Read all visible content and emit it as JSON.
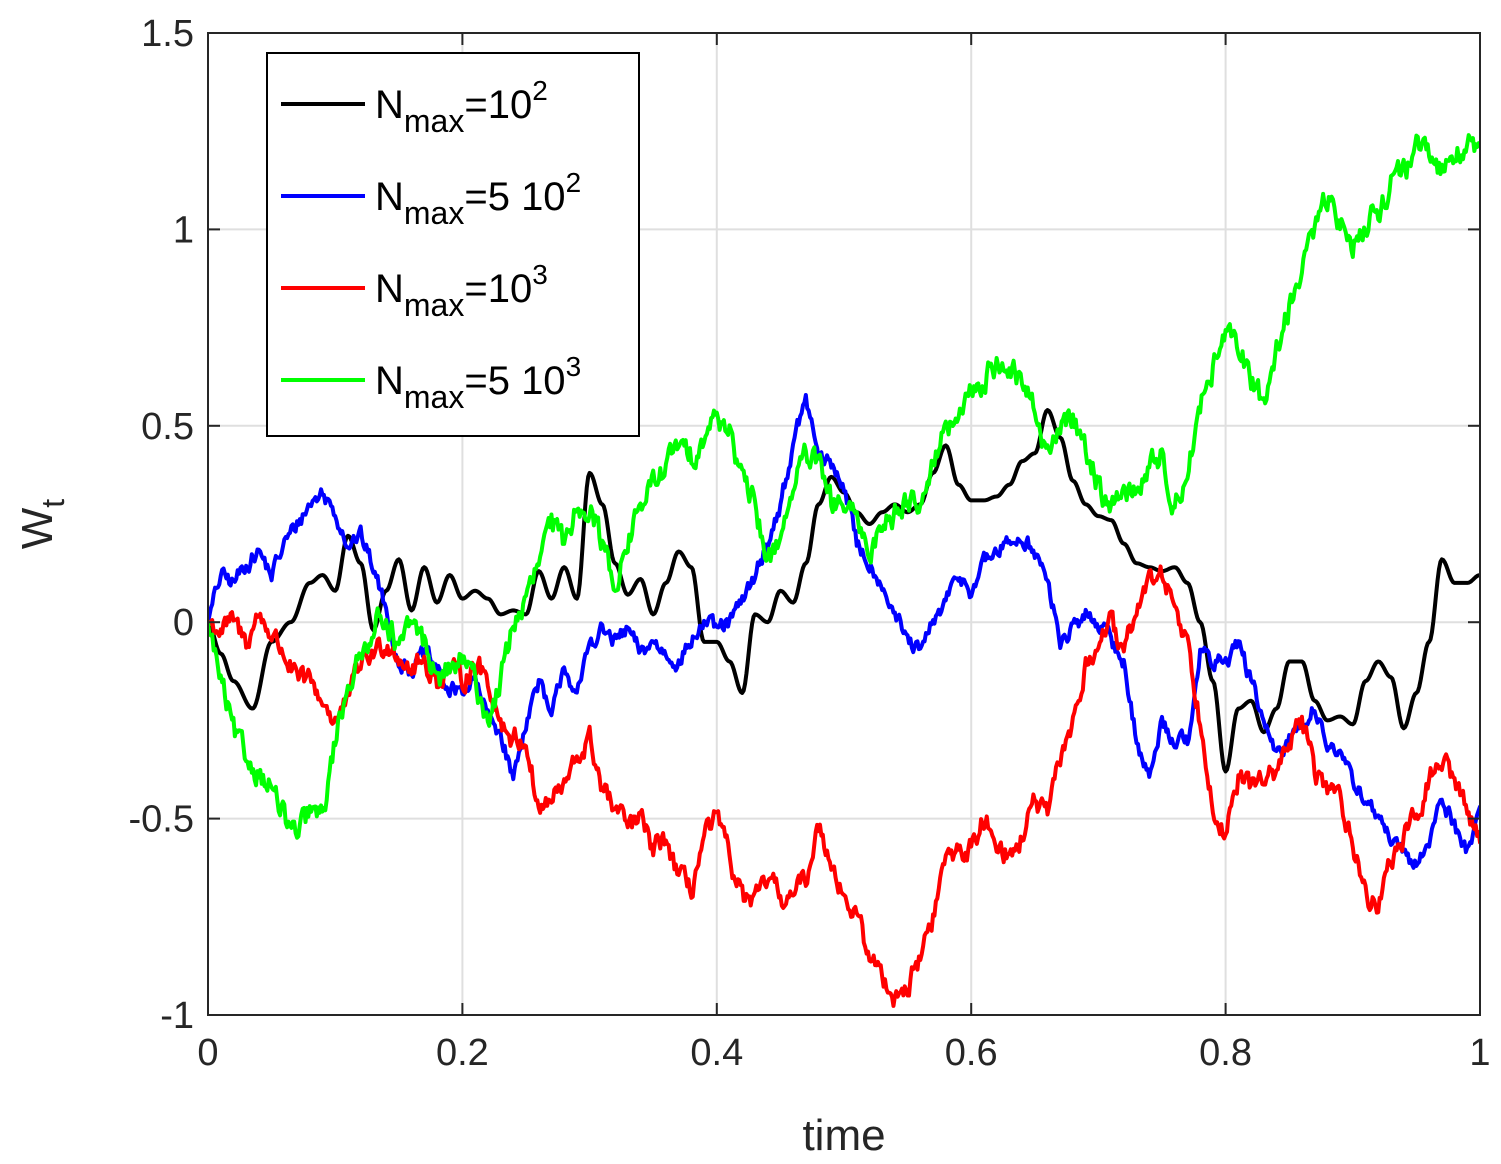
{
  "chart_data": {
    "type": "line",
    "xlabel": "time",
    "ylabel": {
      "base": "W",
      "sub": "t"
    },
    "xlim": [
      0,
      1
    ],
    "ylim": [
      -1,
      1.5
    ],
    "xticks": [
      0,
      0.2,
      0.4,
      0.6,
      0.8,
      1
    ],
    "xtick_labels": [
      "0",
      "0.2",
      "0.4",
      "0.6",
      "0.8",
      "1"
    ],
    "yticks": [
      -1,
      -0.5,
      0,
      0.5,
      1,
      1.5
    ],
    "ytick_labels": [
      "-1",
      "-0.5",
      "0",
      "0.5",
      "1",
      "1.5"
    ],
    "grid": true,
    "legend_position": "top-left",
    "series": [
      {
        "name": "N_max=10^2",
        "label": {
          "base": "N",
          "sub": "max",
          "eq": "=10",
          "sup": "2"
        },
        "color": "#000000",
        "roughness": 0,
        "x": [
          0,
          0.01,
          0.02,
          0.035,
          0.05,
          0.065,
          0.08,
          0.09,
          0.1,
          0.11,
          0.12,
          0.13,
          0.14,
          0.15,
          0.16,
          0.17,
          0.18,
          0.19,
          0.2,
          0.21,
          0.22,
          0.23,
          0.24,
          0.25,
          0.26,
          0.27,
          0.28,
          0.29,
          0.3,
          0.31,
          0.32,
          0.33,
          0.34,
          0.35,
          0.36,
          0.37,
          0.38,
          0.39,
          0.4,
          0.41,
          0.42,
          0.43,
          0.44,
          0.45,
          0.46,
          0.47,
          0.48,
          0.49,
          0.5,
          0.51,
          0.52,
          0.53,
          0.54,
          0.55,
          0.56,
          0.57,
          0.58,
          0.59,
          0.6,
          0.61,
          0.62,
          0.63,
          0.64,
          0.65,
          0.66,
          0.67,
          0.68,
          0.69,
          0.7,
          0.71,
          0.72,
          0.73,
          0.74,
          0.75,
          0.76,
          0.77,
          0.78,
          0.79,
          0.8,
          0.81,
          0.82,
          0.83,
          0.84,
          0.85,
          0.86,
          0.87,
          0.88,
          0.89,
          0.9,
          0.91,
          0.92,
          0.93,
          0.94,
          0.95,
          0.96,
          0.97,
          0.98,
          0.99,
          1.0
        ],
        "y": [
          0,
          -0.08,
          -0.15,
          -0.22,
          -0.05,
          0,
          0.1,
          0.12,
          0.08,
          0.22,
          0.15,
          -0.02,
          0.08,
          0.16,
          0.03,
          0.14,
          0.05,
          0.12,
          0.06,
          0.08,
          0.06,
          0.02,
          0.03,
          0.02,
          0.13,
          0.06,
          0.14,
          0.06,
          0.38,
          0.3,
          0.15,
          0.07,
          0.11,
          0.02,
          0.1,
          0.18,
          0.14,
          -0.05,
          -0.05,
          -0.1,
          -0.18,
          0.02,
          0.0,
          0.08,
          0.05,
          0.15,
          0.3,
          0.37,
          0.33,
          0.28,
          0.25,
          0.28,
          0.3,
          0.28,
          0.3,
          0.38,
          0.45,
          0.35,
          0.31,
          0.31,
          0.32,
          0.35,
          0.41,
          0.43,
          0.54,
          0.47,
          0.36,
          0.3,
          0.27,
          0.26,
          0.2,
          0.15,
          0.14,
          0.13,
          0.14,
          0.1,
          0.0,
          -0.15,
          -0.38,
          -0.22,
          -0.2,
          -0.28,
          -0.22,
          -0.1,
          -0.1,
          -0.2,
          -0.25,
          -0.24,
          -0.26,
          -0.15,
          -0.1,
          -0.14,
          -0.27,
          -0.18,
          -0.05,
          0.16,
          0.1,
          0.1,
          0.12
        ]
      },
      {
        "name": "N_max=5 10^2",
        "label": {
          "base": "N",
          "sub": "max",
          "eq": "=5 10",
          "sup": "2"
        },
        "color": "#0000ff",
        "roughness": 0.016,
        "x": [
          0,
          0.01,
          0.02,
          0.03,
          0.04,
          0.05,
          0.06,
          0.07,
          0.08,
          0.09,
          0.1,
          0.11,
          0.12,
          0.13,
          0.14,
          0.15,
          0.16,
          0.17,
          0.18,
          0.19,
          0.2,
          0.21,
          0.22,
          0.23,
          0.24,
          0.25,
          0.26,
          0.27,
          0.28,
          0.29,
          0.3,
          0.31,
          0.32,
          0.33,
          0.34,
          0.35,
          0.36,
          0.37,
          0.38,
          0.39,
          0.4,
          0.41,
          0.42,
          0.43,
          0.44,
          0.45,
          0.46,
          0.47,
          0.48,
          0.49,
          0.5,
          0.51,
          0.52,
          0.53,
          0.54,
          0.55,
          0.56,
          0.57,
          0.58,
          0.59,
          0.6,
          0.61,
          0.62,
          0.63,
          0.64,
          0.65,
          0.66,
          0.67,
          0.68,
          0.69,
          0.7,
          0.71,
          0.72,
          0.73,
          0.74,
          0.75,
          0.76,
          0.77,
          0.78,
          0.79,
          0.8,
          0.81,
          0.82,
          0.83,
          0.84,
          0.85,
          0.86,
          0.87,
          0.88,
          0.89,
          0.9,
          0.91,
          0.92,
          0.93,
          0.94,
          0.95,
          0.96,
          0.97,
          0.98,
          0.99,
          1.0
        ],
        "y": [
          0,
          0.12,
          0.1,
          0.15,
          0.18,
          0.12,
          0.2,
          0.25,
          0.3,
          0.33,
          0.28,
          0.2,
          0.22,
          0.14,
          0.03,
          -0.1,
          -0.12,
          -0.08,
          -0.12,
          -0.18,
          -0.17,
          -0.15,
          -0.24,
          -0.28,
          -0.4,
          -0.25,
          -0.15,
          -0.25,
          -0.1,
          -0.2,
          -0.05,
          -0.02,
          -0.05,
          -0.02,
          -0.08,
          -0.05,
          -0.08,
          -0.1,
          -0.05,
          0.0,
          -0.02,
          0.0,
          0.05,
          0.12,
          0.2,
          0.3,
          0.45,
          0.57,
          0.42,
          0.4,
          0.35,
          0.2,
          0.15,
          0.1,
          0.02,
          -0.05,
          -0.08,
          0.0,
          0.05,
          0.12,
          0.08,
          0.15,
          0.18,
          0.2,
          0.22,
          0.18,
          0.1,
          -0.05,
          -0.02,
          0.02,
          0.0,
          -0.05,
          -0.1,
          -0.3,
          -0.4,
          -0.25,
          -0.3,
          -0.3,
          -0.08,
          -0.1,
          -0.1,
          -0.05,
          -0.15,
          -0.25,
          -0.35,
          -0.3,
          -0.25,
          -0.22,
          -0.3,
          -0.35,
          -0.4,
          -0.45,
          -0.5,
          -0.55,
          -0.6,
          -0.62,
          -0.55,
          -0.45,
          -0.52,
          -0.58,
          -0.48
        ]
      },
      {
        "name": "N_max=10^3",
        "label": {
          "base": "N",
          "sub": "max",
          "eq": "=10",
          "sup": "3"
        },
        "color": "#ff0000",
        "roughness": 0.022,
        "x": [
          0,
          0.01,
          0.02,
          0.03,
          0.04,
          0.05,
          0.06,
          0.07,
          0.08,
          0.09,
          0.1,
          0.11,
          0.12,
          0.13,
          0.14,
          0.15,
          0.16,
          0.17,
          0.18,
          0.19,
          0.2,
          0.21,
          0.22,
          0.23,
          0.24,
          0.25,
          0.26,
          0.27,
          0.28,
          0.29,
          0.3,
          0.31,
          0.32,
          0.33,
          0.34,
          0.35,
          0.36,
          0.37,
          0.38,
          0.39,
          0.4,
          0.41,
          0.42,
          0.43,
          0.44,
          0.45,
          0.46,
          0.47,
          0.48,
          0.49,
          0.5,
          0.51,
          0.52,
          0.53,
          0.54,
          0.55,
          0.56,
          0.57,
          0.58,
          0.59,
          0.6,
          0.61,
          0.62,
          0.63,
          0.64,
          0.65,
          0.66,
          0.67,
          0.68,
          0.69,
          0.7,
          0.71,
          0.72,
          0.73,
          0.74,
          0.75,
          0.76,
          0.77,
          0.78,
          0.79,
          0.8,
          0.81,
          0.82,
          0.83,
          0.84,
          0.85,
          0.86,
          0.87,
          0.88,
          0.89,
          0.9,
          0.91,
          0.92,
          0.93,
          0.94,
          0.95,
          0.96,
          0.97,
          0.98,
          0.99,
          1.0
        ],
        "y": [
          0,
          -0.02,
          0.0,
          -0.05,
          0.02,
          -0.03,
          -0.08,
          -0.15,
          -0.15,
          -0.2,
          -0.25,
          -0.2,
          -0.1,
          -0.08,
          -0.05,
          -0.08,
          -0.12,
          -0.1,
          -0.15,
          -0.12,
          -0.15,
          -0.1,
          -0.15,
          -0.25,
          -0.3,
          -0.3,
          -0.48,
          -0.45,
          -0.42,
          -0.35,
          -0.3,
          -0.42,
          -0.48,
          -0.52,
          -0.5,
          -0.58,
          -0.55,
          -0.65,
          -0.68,
          -0.55,
          -0.5,
          -0.6,
          -0.7,
          -0.72,
          -0.65,
          -0.7,
          -0.7,
          -0.65,
          -0.52,
          -0.6,
          -0.7,
          -0.75,
          -0.85,
          -0.9,
          -0.95,
          -0.93,
          -0.85,
          -0.75,
          -0.6,
          -0.58,
          -0.58,
          -0.5,
          -0.55,
          -0.6,
          -0.55,
          -0.45,
          -0.5,
          -0.35,
          -0.25,
          -0.12,
          -0.05,
          0.0,
          -0.1,
          0.05,
          0.1,
          0.12,
          0.05,
          -0.05,
          -0.25,
          -0.45,
          -0.55,
          -0.4,
          -0.42,
          -0.38,
          -0.4,
          -0.3,
          -0.25,
          -0.38,
          -0.42,
          -0.45,
          -0.55,
          -0.7,
          -0.72,
          -0.6,
          -0.55,
          -0.5,
          -0.4,
          -0.35,
          -0.4,
          -0.48,
          -0.55
        ]
      },
      {
        "name": "N_max=5 10^3",
        "label": {
          "base": "N",
          "sub": "max",
          "eq": "=5 10",
          "sup": "3"
        },
        "color": "#00ff00",
        "roughness": 0.025,
        "x": [
          0,
          0.01,
          0.02,
          0.03,
          0.04,
          0.05,
          0.06,
          0.07,
          0.08,
          0.09,
          0.1,
          0.11,
          0.12,
          0.13,
          0.14,
          0.15,
          0.16,
          0.17,
          0.18,
          0.19,
          0.2,
          0.21,
          0.22,
          0.23,
          0.24,
          0.25,
          0.26,
          0.27,
          0.28,
          0.29,
          0.3,
          0.31,
          0.32,
          0.33,
          0.34,
          0.35,
          0.36,
          0.37,
          0.38,
          0.39,
          0.4,
          0.41,
          0.42,
          0.43,
          0.44,
          0.45,
          0.46,
          0.47,
          0.48,
          0.49,
          0.5,
          0.51,
          0.52,
          0.53,
          0.54,
          0.55,
          0.56,
          0.57,
          0.58,
          0.59,
          0.6,
          0.61,
          0.62,
          0.63,
          0.64,
          0.65,
          0.66,
          0.67,
          0.68,
          0.69,
          0.7,
          0.71,
          0.72,
          0.73,
          0.74,
          0.75,
          0.76,
          0.77,
          0.78,
          0.79,
          0.8,
          0.81,
          0.82,
          0.83,
          0.84,
          0.85,
          0.86,
          0.87,
          0.88,
          0.89,
          0.9,
          0.91,
          0.92,
          0.93,
          0.94,
          0.95,
          0.96,
          0.97,
          0.98,
          0.99,
          1.0
        ],
        "y": [
          0,
          -0.15,
          -0.28,
          -0.35,
          -0.38,
          -0.42,
          -0.5,
          -0.55,
          -0.48,
          -0.5,
          -0.3,
          -0.15,
          -0.1,
          0.0,
          0.02,
          -0.08,
          0.0,
          -0.05,
          -0.15,
          -0.12,
          -0.1,
          -0.15,
          -0.25,
          -0.15,
          0.0,
          0.05,
          0.15,
          0.25,
          0.2,
          0.3,
          0.3,
          0.2,
          0.1,
          0.2,
          0.3,
          0.35,
          0.4,
          0.45,
          0.42,
          0.48,
          0.52,
          0.5,
          0.35,
          0.3,
          0.15,
          0.22,
          0.35,
          0.42,
          0.4,
          0.3,
          0.3,
          0.25,
          0.18,
          0.25,
          0.28,
          0.32,
          0.3,
          0.42,
          0.48,
          0.52,
          0.58,
          0.62,
          0.66,
          0.65,
          0.6,
          0.55,
          0.42,
          0.5,
          0.52,
          0.45,
          0.35,
          0.28,
          0.35,
          0.32,
          0.4,
          0.42,
          0.3,
          0.38,
          0.55,
          0.65,
          0.72,
          0.7,
          0.62,
          0.55,
          0.7,
          0.8,
          0.9,
          1.0,
          1.08,
          1.02,
          0.95,
          1.02,
          1.05,
          1.12,
          1.15,
          1.2,
          1.18,
          1.15,
          1.2,
          1.22,
          1.18
        ]
      }
    ]
  }
}
